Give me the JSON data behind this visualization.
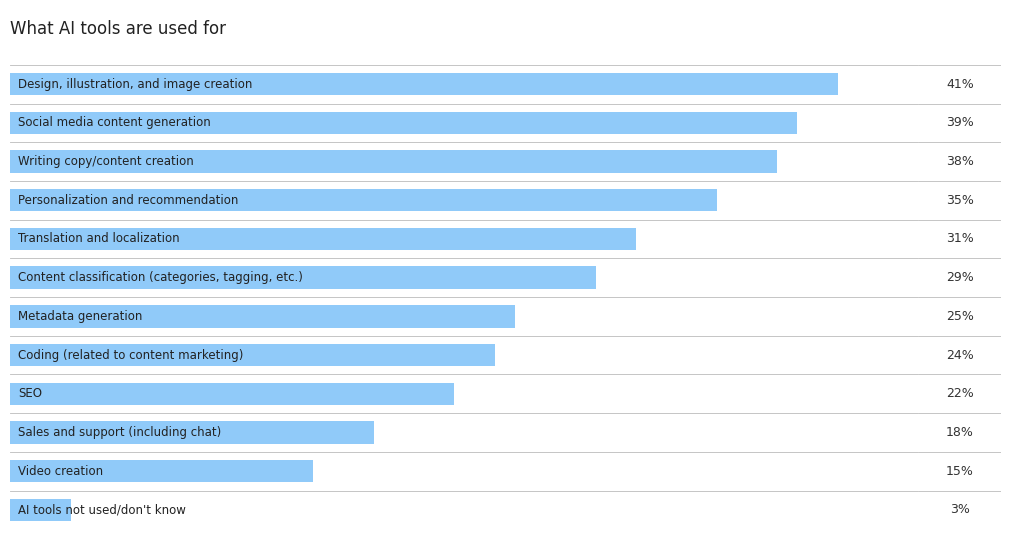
{
  "title": "What AI tools are used for",
  "categories": [
    "Design, illustration, and image creation",
    "Social media content generation",
    "Writing copy/content creation",
    "Personalization and recommendation",
    "Translation and localization",
    "Content classification (categories, tagging, etc.)",
    "Metadata generation",
    "Coding (related to content marketing)",
    "SEO",
    "Sales and support (including chat)",
    "Video creation",
    "AI tools not used/don't know"
  ],
  "values": [
    41,
    39,
    38,
    35,
    31,
    29,
    25,
    24,
    22,
    18,
    15,
    3
  ],
  "bar_color": "#90CAF9",
  "text_color": "#222222",
  "pct_color": "#333333",
  "separator_color": "#bbbbbb",
  "background_color": "#ffffff",
  "title_fontsize": 12,
  "label_fontsize": 8.5,
  "pct_fontsize": 9,
  "xlim_max": 45,
  "bar_height": 0.58
}
